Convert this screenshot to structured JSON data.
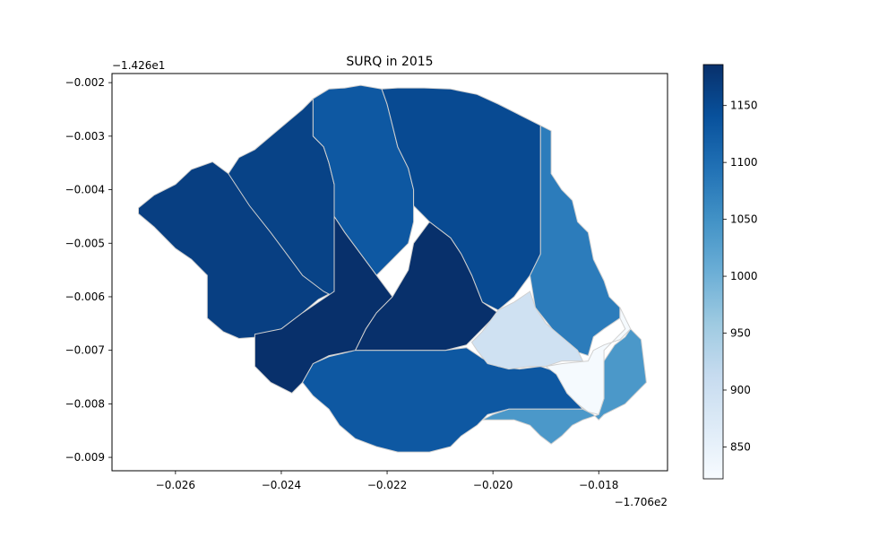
{
  "chart_data": {
    "type": "heatmap",
    "title": "SURQ in 2015",
    "xlabel": "",
    "ylabel": "",
    "x_offset_label": "−1.706e2",
    "y_offset_label": "−1.426e1",
    "xlim": [
      -0.0272,
      -0.0167
    ],
    "ylim": [
      -0.00925,
      -0.00183
    ],
    "x_ticks": [
      -0.026,
      -0.024,
      -0.022,
      -0.02,
      -0.018
    ],
    "x_tick_labels": [
      "−0.026",
      "−0.024",
      "−0.022",
      "−0.020",
      "−0.018"
    ],
    "y_ticks": [
      -0.002,
      -0.003,
      -0.004,
      -0.005,
      -0.006,
      -0.007,
      -0.008,
      -0.009
    ],
    "y_tick_labels": [
      "−0.002",
      "−0.003",
      "−0.004",
      "−0.005",
      "−0.006",
      "−0.007",
      "−0.008",
      "−0.009"
    ],
    "colorbar": {
      "colormap": "Blues",
      "vmin": 822,
      "vmax": 1186,
      "ticks": [
        850,
        900,
        950,
        1000,
        1050,
        1100,
        1150
      ],
      "tick_labels": [
        "850",
        "900",
        "950",
        "1000",
        "1050",
        "1100",
        "1150"
      ],
      "colors": [
        "#f7fbff",
        "#deebf7",
        "#c6dbef",
        "#9ecae1",
        "#6baed6",
        "#4292c6",
        "#2171b5",
        "#08519c",
        "#08306b"
      ]
    },
    "subbasins": [
      {
        "id": "west",
        "value": 1165,
        "polygon": [
          [
            -0.0267,
            -0.00434
          ],
          [
            -0.0264,
            -0.0041
          ],
          [
            -0.026,
            -0.0039
          ],
          [
            -0.0257,
            -0.00362
          ],
          [
            -0.0253,
            -0.00348
          ],
          [
            -0.025,
            -0.0037
          ],
          [
            -0.0246,
            -0.004
          ],
          [
            -0.0242,
            -0.0044
          ],
          [
            -0.0239,
            -0.0048
          ],
          [
            -0.0236,
            -0.0052
          ],
          [
            -0.0233,
            -0.0056
          ],
          [
            -0.023,
            -0.0059
          ],
          [
            -0.0233,
            -0.00605
          ],
          [
            -0.0236,
            -0.0063
          ],
          [
            -0.024,
            -0.0066
          ],
          [
            -0.0244,
            -0.00675
          ],
          [
            -0.0248,
            -0.00678
          ],
          [
            -0.0251,
            -0.00665
          ],
          [
            -0.0254,
            -0.0064
          ],
          [
            -0.0254,
            -0.0056
          ],
          [
            -0.0257,
            -0.0053
          ],
          [
            -0.026,
            -0.0051
          ],
          [
            -0.0264,
            -0.0047
          ],
          [
            -0.0267,
            -0.00445
          ]
        ]
      },
      {
        "id": "northwest",
        "value": 1160,
        "polygon": [
          [
            -0.025,
            -0.0037
          ],
          [
            -0.0248,
            -0.0034
          ],
          [
            -0.0245,
            -0.00325
          ],
          [
            -0.0242,
            -0.003
          ],
          [
            -0.0239,
            -0.00275
          ],
          [
            -0.0236,
            -0.0025
          ],
          [
            -0.0234,
            -0.0023
          ],
          [
            -0.0234,
            -0.003
          ],
          [
            -0.0232,
            -0.0032
          ],
          [
            -0.0231,
            -0.0035
          ],
          [
            -0.023,
            -0.0039
          ],
          [
            -0.023,
            -0.006
          ],
          [
            -0.0232,
            -0.0059
          ],
          [
            -0.0236,
            -0.0056
          ],
          [
            -0.0239,
            -0.0052
          ],
          [
            -0.0242,
            -0.0048
          ],
          [
            -0.0246,
            -0.0043
          ]
        ]
      },
      {
        "id": "north-center",
        "value": 1130,
        "polygon": [
          [
            -0.0234,
            -0.0023
          ],
          [
            -0.0231,
            -0.00212
          ],
          [
            -0.0228,
            -0.0021
          ],
          [
            -0.0225,
            -0.00205
          ],
          [
            -0.0221,
            -0.00212
          ],
          [
            -0.022,
            -0.0024
          ],
          [
            -0.0219,
            -0.0028
          ],
          [
            -0.0218,
            -0.0032
          ],
          [
            -0.0216,
            -0.0036
          ],
          [
            -0.0215,
            -0.004
          ],
          [
            -0.0215,
            -0.0046
          ],
          [
            -0.0216,
            -0.005
          ],
          [
            -0.0219,
            -0.0053
          ],
          [
            -0.0222,
            -0.0056
          ],
          [
            -0.0225,
            -0.0052
          ],
          [
            -0.0228,
            -0.0048
          ],
          [
            -0.023,
            -0.0045
          ],
          [
            -0.023,
            -0.0039
          ],
          [
            -0.0231,
            -0.0035
          ],
          [
            -0.0232,
            -0.0032
          ],
          [
            -0.0234,
            -0.003
          ]
        ]
      },
      {
        "id": "northeast",
        "value": 1150,
        "polygon": [
          [
            -0.0221,
            -0.00212
          ],
          [
            -0.0218,
            -0.0021
          ],
          [
            -0.0213,
            -0.0021
          ],
          [
            -0.0208,
            -0.00212
          ],
          [
            -0.0203,
            -0.00222
          ],
          [
            -0.0199,
            -0.0024
          ],
          [
            -0.0195,
            -0.0026
          ],
          [
            -0.0191,
            -0.0028
          ],
          [
            -0.0191,
            -0.0052
          ],
          [
            -0.0193,
            -0.0056
          ],
          [
            -0.0196,
            -0.006
          ],
          [
            -0.0199,
            -0.00625
          ],
          [
            -0.0202,
            -0.0061
          ],
          [
            -0.0204,
            -0.0056
          ],
          [
            -0.0206,
            -0.0052
          ],
          [
            -0.0208,
            -0.0049
          ],
          [
            -0.0212,
            -0.0046
          ],
          [
            -0.0215,
            -0.0043
          ],
          [
            -0.0215,
            -0.004
          ],
          [
            -0.0216,
            -0.0036
          ],
          [
            -0.0218,
            -0.0032
          ],
          [
            -0.0219,
            -0.0028
          ],
          [
            -0.022,
            -0.0024
          ]
        ]
      },
      {
        "id": "center-southwest",
        "value": 1186,
        "polygon": [
          [
            -0.023,
            -0.0045
          ],
          [
            -0.0228,
            -0.0048
          ],
          [
            -0.0225,
            -0.0052
          ],
          [
            -0.0222,
            -0.0056
          ],
          [
            -0.0219,
            -0.006
          ],
          [
            -0.0222,
            -0.0063
          ],
          [
            -0.0224,
            -0.0066
          ],
          [
            -0.0226,
            -0.007
          ],
          [
            -0.0231,
            -0.0071
          ],
          [
            -0.0234,
            -0.00725
          ],
          [
            -0.0236,
            -0.0076
          ],
          [
            -0.0238,
            -0.0078
          ],
          [
            -0.0242,
            -0.0076
          ],
          [
            -0.0245,
            -0.0073
          ],
          [
            -0.0245,
            -0.0067
          ],
          [
            -0.024,
            -0.0066
          ],
          [
            -0.0236,
            -0.0063
          ],
          [
            -0.0233,
            -0.0061
          ],
          [
            -0.023,
            -0.0059
          ]
        ]
      },
      {
        "id": "center",
        "value": 1186,
        "polygon": [
          [
            -0.0219,
            -0.006
          ],
          [
            -0.0216,
            -0.0055
          ],
          [
            -0.0215,
            -0.005
          ],
          [
            -0.0212,
            -0.0046
          ],
          [
            -0.0208,
            -0.0049
          ],
          [
            -0.0206,
            -0.0052
          ],
          [
            -0.0204,
            -0.0056
          ],
          [
            -0.0202,
            -0.0061
          ],
          [
            -0.0199,
            -0.0063
          ],
          [
            -0.0202,
            -0.0066
          ],
          [
            -0.0205,
            -0.0069
          ],
          [
            -0.0209,
            -0.007
          ],
          [
            -0.0214,
            -0.007
          ],
          [
            -0.0219,
            -0.007
          ],
          [
            -0.0226,
            -0.007
          ],
          [
            -0.0224,
            -0.0066
          ],
          [
            -0.0222,
            -0.0063
          ]
        ]
      },
      {
        "id": "south",
        "value": 1130,
        "polygon": [
          [
            -0.0236,
            -0.0076
          ],
          [
            -0.0234,
            -0.00725
          ],
          [
            -0.0231,
            -0.00712
          ],
          [
            -0.0226,
            -0.007
          ],
          [
            -0.0214,
            -0.007
          ],
          [
            -0.0209,
            -0.007
          ],
          [
            -0.0205,
            -0.00695
          ],
          [
            -0.0202,
            -0.00715
          ],
          [
            -0.0199,
            -0.0073
          ],
          [
            -0.0195,
            -0.00735
          ],
          [
            -0.0191,
            -0.0073
          ],
          [
            -0.0188,
            -0.0074
          ],
          [
            -0.0186,
            -0.0078
          ],
          [
            -0.0183,
            -0.0081
          ],
          [
            -0.0185,
            -0.0081
          ],
          [
            -0.019,
            -0.0081
          ],
          [
            -0.0197,
            -0.0081
          ],
          [
            -0.0201,
            -0.0082
          ],
          [
            -0.0203,
            -0.0084
          ],
          [
            -0.0206,
            -0.0086
          ],
          [
            -0.0208,
            -0.0088
          ],
          [
            -0.0212,
            -0.0089
          ],
          [
            -0.0218,
            -0.0089
          ],
          [
            -0.0222,
            -0.0088
          ],
          [
            -0.0226,
            -0.00865
          ],
          [
            -0.0229,
            -0.0084
          ],
          [
            -0.0231,
            -0.0081
          ],
          [
            -0.0234,
            -0.00785
          ]
        ]
      },
      {
        "id": "east",
        "value": 1080,
        "polygon": [
          [
            -0.0191,
            -0.0028
          ],
          [
            -0.0189,
            -0.0029
          ],
          [
            -0.0189,
            -0.0037
          ],
          [
            -0.0187,
            -0.004
          ],
          [
            -0.0185,
            -0.0042
          ],
          [
            -0.0184,
            -0.0046
          ],
          [
            -0.0182,
            -0.0048
          ],
          [
            -0.0181,
            -0.0053
          ],
          [
            -0.0179,
            -0.0057
          ],
          [
            -0.0178,
            -0.006
          ],
          [
            -0.0176,
            -0.0062
          ],
          [
            -0.0176,
            -0.0064
          ],
          [
            -0.0179,
            -0.0066
          ],
          [
            -0.0181,
            -0.00675
          ],
          [
            -0.0182,
            -0.0071
          ],
          [
            -0.0185,
            -0.007
          ],
          [
            -0.0188,
            -0.0067
          ],
          [
            -0.019,
            -0.00645
          ],
          [
            -0.0192,
            -0.0062
          ],
          [
            -0.0193,
            -0.0056
          ],
          [
            -0.0191,
            -0.0052
          ]
        ]
      },
      {
        "id": "southeast-light",
        "value": 895,
        "polygon": [
          [
            -0.0199,
            -0.00625
          ],
          [
            -0.0196,
            -0.0061
          ],
          [
            -0.0193,
            -0.0059
          ],
          [
            -0.0192,
            -0.0062
          ],
          [
            -0.019,
            -0.0065
          ],
          [
            -0.0187,
            -0.00675
          ],
          [
            -0.0184,
            -0.007
          ],
          [
            -0.0183,
            -0.0072
          ],
          [
            -0.0187,
            -0.0072
          ],
          [
            -0.019,
            -0.0073
          ],
          [
            -0.0193,
            -0.0073
          ],
          [
            -0.0197,
            -0.00735
          ],
          [
            -0.0201,
            -0.00725
          ],
          [
            -0.0203,
            -0.007
          ],
          [
            -0.0204,
            -0.00685
          ],
          [
            -0.0202,
            -0.00665
          ]
        ]
      },
      {
        "id": "southeast-white",
        "value": 825,
        "polygon": [
          [
            -0.0176,
            -0.0062
          ],
          [
            -0.0175,
            -0.0064
          ],
          [
            -0.0174,
            -0.0066
          ],
          [
            -0.0176,
            -0.0068
          ],
          [
            -0.0179,
            -0.0069
          ],
          [
            -0.0181,
            -0.007
          ],
          [
            -0.0182,
            -0.0072
          ],
          [
            -0.0187,
            -0.00725
          ],
          [
            -0.019,
            -0.0073
          ],
          [
            -0.0188,
            -0.00745
          ],
          [
            -0.0186,
            -0.0078
          ],
          [
            -0.0184,
            -0.008
          ],
          [
            -0.0182,
            -0.00815
          ],
          [
            -0.018,
            -0.0082
          ],
          [
            -0.0179,
            -0.0079
          ],
          [
            -0.0179,
            -0.007
          ],
          [
            -0.0177,
            -0.0068
          ],
          [
            -0.0175,
            -0.0066
          ],
          [
            -0.0176,
            -0.0064
          ]
        ]
      },
      {
        "id": "far-east",
        "value": 1040,
        "polygon": [
          [
            -0.0174,
            -0.0066
          ],
          [
            -0.0172,
            -0.0068
          ],
          [
            -0.0171,
            -0.0076
          ],
          [
            -0.0173,
            -0.0078
          ],
          [
            -0.0175,
            -0.008
          ],
          [
            -0.0177,
            -0.0081
          ],
          [
            -0.0179,
            -0.0082
          ],
          [
            -0.018,
            -0.0083
          ],
          [
            -0.0181,
            -0.0082
          ],
          [
            -0.0183,
            -0.0081
          ],
          [
            -0.0186,
            -0.0081
          ],
          [
            -0.019,
            -0.0081
          ],
          [
            -0.0197,
            -0.0081
          ],
          [
            -0.02,
            -0.0082
          ],
          [
            -0.0202,
            -0.0083
          ],
          [
            -0.0196,
            -0.0083
          ],
          [
            -0.0193,
            -0.0084
          ],
          [
            -0.0191,
            -0.0086
          ],
          [
            -0.0189,
            -0.00875
          ],
          [
            -0.0187,
            -0.0086
          ],
          [
            -0.0185,
            -0.0084
          ],
          [
            -0.0183,
            -0.0083
          ],
          [
            -0.018,
            -0.0082
          ],
          [
            -0.0179,
            -0.0079
          ],
          [
            -0.0179,
            -0.0072
          ],
          [
            -0.0177,
            -0.0069
          ],
          [
            -0.0175,
            -0.00675
          ]
        ]
      }
    ]
  }
}
